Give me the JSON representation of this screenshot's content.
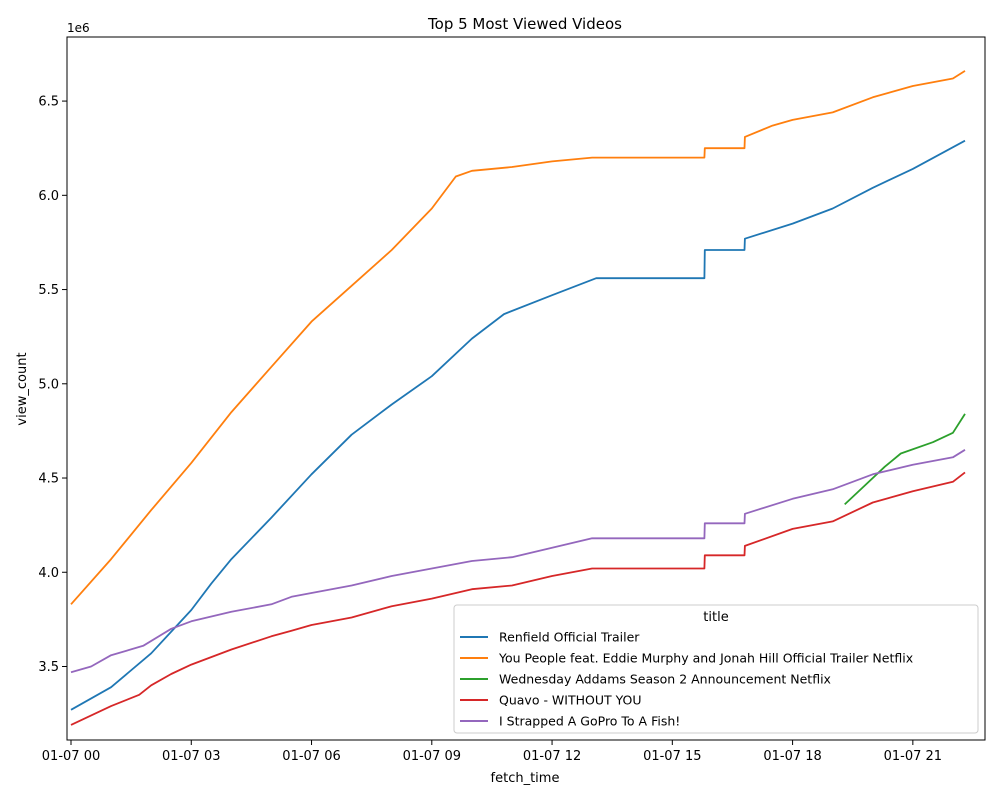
{
  "chart_data": {
    "type": "line",
    "title": "Top 5 Most Viewed Videos",
    "xlabel": "fetch_time",
    "ylabel": "view_count",
    "y_multiplier": "1e6",
    "xlim": [
      -0.1,
      22.8
    ],
    "ylim": [
      3.11,
      6.84
    ],
    "grid": false,
    "legend_placement": "lower-right",
    "legend_title": "title",
    "x_ticks": [
      {
        "value": 0,
        "label": "01-07 00"
      },
      {
        "value": 3,
        "label": "01-07 03"
      },
      {
        "value": 6,
        "label": "01-07 06"
      },
      {
        "value": 9,
        "label": "01-07 09"
      },
      {
        "value": 12,
        "label": "01-07 12"
      },
      {
        "value": 15,
        "label": "01-07 15"
      },
      {
        "value": 18,
        "label": "01-07 18"
      },
      {
        "value": 21,
        "label": "01-07 21"
      }
    ],
    "y_ticks": [
      {
        "value": 3.5,
        "label": "3.5"
      },
      {
        "value": 4.0,
        "label": "4.0"
      },
      {
        "value": 4.5,
        "label": "4.5"
      },
      {
        "value": 5.0,
        "label": "5.0"
      },
      {
        "value": 5.5,
        "label": "5.5"
      },
      {
        "value": 6.0,
        "label": "6.0"
      },
      {
        "value": 6.5,
        "label": "6.5"
      }
    ],
    "series": [
      {
        "name": "Renfield  Official Trailer",
        "color": "#1f77b4",
        "x": [
          0,
          1,
          2,
          3,
          3.5,
          4,
          5,
          6,
          7,
          8,
          9,
          10,
          10.8,
          12,
          13.1,
          15.8,
          15.81,
          16.8,
          16.81,
          18,
          19,
          20,
          21,
          22.3
        ],
        "y": [
          3.27,
          3.39,
          3.57,
          3.8,
          3.94,
          4.07,
          4.29,
          4.52,
          4.73,
          4.89,
          5.04,
          5.24,
          5.37,
          5.47,
          5.56,
          5.56,
          5.71,
          5.71,
          5.77,
          5.85,
          5.93,
          6.04,
          6.14,
          6.29
        ]
      },
      {
        "name": "You People  feat. Eddie Murphy and Jonah Hill  Official Trailer  Netflix",
        "color": "#ff7f0e",
        "x": [
          0,
          1,
          2,
          3,
          4,
          5,
          6,
          7,
          8,
          9,
          9.6,
          10,
          11,
          12,
          13,
          15.8,
          15.81,
          16.8,
          16.81,
          17.5,
          18,
          19,
          20,
          21,
          22,
          22.3
        ],
        "y": [
          3.83,
          4.07,
          4.33,
          4.58,
          4.85,
          5.09,
          5.33,
          5.52,
          5.71,
          5.93,
          6.1,
          6.13,
          6.15,
          6.18,
          6.2,
          6.2,
          6.25,
          6.25,
          6.31,
          6.37,
          6.4,
          6.44,
          6.52,
          6.58,
          6.62,
          6.66
        ]
      },
      {
        "name": "Wednesday Addams  Season 2 Announcement  Netflix",
        "color": "#2ca02c",
        "x": [
          19.3,
          19.8,
          20.3,
          20.7,
          21.5,
          22,
          22.3
        ],
        "y": [
          4.36,
          4.46,
          4.56,
          4.63,
          4.69,
          4.74,
          4.84
        ]
      },
      {
        "name": "Quavo - WITHOUT YOU",
        "color": "#d62728",
        "x": [
          0,
          1,
          1.7,
          2,
          2.5,
          3,
          4,
          5,
          5.5,
          6,
          6.5,
          7,
          8,
          9,
          10,
          11,
          12,
          13,
          15.8,
          15.81,
          16.8,
          16.81,
          18,
          19,
          20,
          21,
          22,
          22.3
        ],
        "y": [
          3.19,
          3.29,
          3.35,
          3.4,
          3.46,
          3.51,
          3.59,
          3.66,
          3.69,
          3.72,
          3.74,
          3.76,
          3.82,
          3.86,
          3.91,
          3.93,
          3.98,
          4.02,
          4.02,
          4.09,
          4.09,
          4.14,
          4.23,
          4.27,
          4.37,
          4.43,
          4.48,
          4.53
        ]
      },
      {
        "name": "I Strapped A GoPro To A Fish!",
        "color": "#9467bd",
        "x": [
          0,
          0.5,
          1,
          1.8,
          2.5,
          3,
          4,
          5,
          5.5,
          6,
          7,
          8,
          9,
          10,
          11,
          12,
          13,
          15.8,
          15.81,
          16.8,
          16.81,
          18,
          19,
          20,
          21,
          22,
          22.3
        ],
        "y": [
          3.47,
          3.5,
          3.56,
          3.61,
          3.7,
          3.74,
          3.79,
          3.83,
          3.87,
          3.89,
          3.93,
          3.98,
          4.02,
          4.06,
          4.08,
          4.13,
          4.18,
          4.18,
          4.26,
          4.26,
          4.31,
          4.39,
          4.44,
          4.52,
          4.57,
          4.61,
          4.65
        ]
      }
    ]
  }
}
